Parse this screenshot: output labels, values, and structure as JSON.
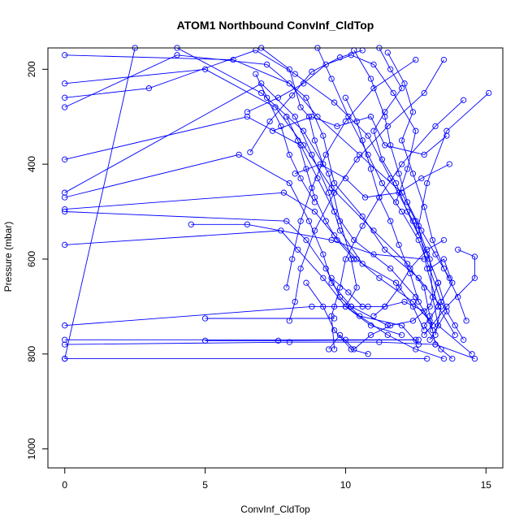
{
  "chart_data": {
    "type": "line",
    "title": "ATOM1 Northbound ConvInf_CldTop",
    "xlabel": "ConvInf_CldTop",
    "ylabel": "Pressure (mbar)",
    "xlim": [
      -0.6,
      15.6
    ],
    "ylim": [
      1040,
      155
    ],
    "y_reversed": true,
    "x_ticks": [
      0,
      5,
      10,
      15
    ],
    "y_ticks": [
      200,
      400,
      600,
      800,
      1000
    ],
    "grid": false,
    "legend": "none",
    "color": "#0000ff",
    "series": [
      {
        "points": [
          [
            0.0,
            810
          ],
          [
            2.5,
            155
          ],
          [
            4.0,
            155
          ],
          [
            7.0,
            250
          ],
          [
            8.5,
            330
          ],
          [
            9.4,
            420
          ],
          [
            9.8,
            520
          ],
          [
            10.2,
            600
          ],
          [
            10.4,
            660
          ],
          [
            10.0,
            700
          ],
          [
            11.5,
            760
          ],
          [
            12.5,
            790
          ],
          [
            13.5,
            810
          ]
        ]
      },
      {
        "points": [
          [
            0.0,
            170
          ],
          [
            6.0,
            180
          ],
          [
            8.0,
            230
          ],
          [
            9.0,
            300
          ],
          [
            10.5,
            380
          ],
          [
            12.0,
            460
          ],
          [
            12.5,
            520
          ],
          [
            13.0,
            600
          ],
          [
            13.1,
            680
          ],
          [
            13.3,
            740
          ],
          [
            14.5,
            800
          ]
        ]
      },
      {
        "points": [
          [
            0.0,
            230
          ],
          [
            5.0,
            200
          ],
          [
            7.5,
            280
          ],
          [
            8.5,
            360
          ],
          [
            9.5,
            450
          ],
          [
            11.0,
            540
          ],
          [
            12.2,
            610
          ],
          [
            12.8,
            660
          ],
          [
            13.0,
            720
          ],
          [
            13.2,
            780
          ],
          [
            14.6,
            810
          ]
        ]
      },
      {
        "points": [
          [
            0.0,
            260
          ],
          [
            3.0,
            240
          ],
          [
            6.8,
            160
          ],
          [
            8.2,
            210
          ],
          [
            9.6,
            270
          ],
          [
            10.8,
            340
          ],
          [
            11.6,
            430
          ],
          [
            12.4,
            520
          ],
          [
            12.9,
            590
          ],
          [
            13.3,
            650
          ],
          [
            13.6,
            710
          ],
          [
            13.0,
            770
          ]
        ]
      },
      {
        "points": [
          [
            0.0,
            280
          ],
          [
            4.0,
            170
          ],
          [
            7.2,
            190
          ],
          [
            8.6,
            260
          ],
          [
            9.2,
            340
          ],
          [
            9.6,
            440
          ],
          [
            10.6,
            510
          ],
          [
            11.4,
            580
          ],
          [
            12.6,
            640
          ],
          [
            13.4,
            700
          ],
          [
            13.2,
            760
          ]
        ]
      },
      {
        "points": [
          [
            0.0,
            390
          ],
          [
            6.5,
            300
          ],
          [
            8.4,
            360
          ],
          [
            9.0,
            430
          ],
          [
            9.6,
            500
          ],
          [
            10.3,
            560
          ],
          [
            11.6,
            620
          ],
          [
            12.5,
            680
          ],
          [
            13.1,
            740
          ]
        ]
      },
      {
        "points": [
          [
            0.0,
            460
          ],
          [
            7.0,
            230
          ],
          [
            8.2,
            300
          ],
          [
            8.8,
            380
          ],
          [
            9.4,
            460
          ],
          [
            9.8,
            540
          ],
          [
            10.6,
            610
          ],
          [
            11.8,
            650
          ],
          [
            12.4,
            700
          ],
          [
            12.8,
            750
          ]
        ]
      },
      {
        "points": [
          [
            0.0,
            470
          ],
          [
            6.2,
            380
          ],
          [
            8.0,
            440
          ],
          [
            8.7,
            520
          ],
          [
            9.2,
            590
          ],
          [
            9.5,
            650
          ],
          [
            10.2,
            700
          ],
          [
            11.5,
            740
          ]
        ]
      },
      {
        "points": [
          [
            0.0,
            495
          ],
          [
            7.8,
            460
          ],
          [
            8.9,
            500
          ],
          [
            9.6,
            550
          ],
          [
            10.4,
            600
          ],
          [
            11.2,
            640
          ],
          [
            12.4,
            690
          ],
          [
            13.0,
            730
          ]
        ]
      },
      {
        "points": [
          [
            0.0,
            500
          ],
          [
            7.9,
            520
          ],
          [
            8.6,
            560
          ],
          [
            9.3,
            620
          ],
          [
            9.8,
            680
          ],
          [
            10.5,
            720
          ],
          [
            12.0,
            740
          ],
          [
            12.6,
            780
          ]
        ]
      },
      {
        "points": [
          [
            0.0,
            570
          ],
          [
            7.7,
            540
          ],
          [
            8.3,
            580
          ],
          [
            9.2,
            640
          ],
          [
            10.0,
            700
          ],
          [
            10.9,
            740
          ],
          [
            12.0,
            760
          ]
        ]
      },
      {
        "points": [
          [
            0.0,
            740
          ],
          [
            8.8,
            700
          ],
          [
            9.6,
            700
          ],
          [
            10.2,
            700
          ],
          [
            10.8,
            700
          ]
        ]
      },
      {
        "points": [
          [
            0.0,
            770
          ],
          [
            10.0,
            770
          ],
          [
            12.6,
            770
          ]
        ]
      },
      {
        "points": [
          [
            0.0,
            780
          ],
          [
            8.0,
            775
          ],
          [
            11.2,
            775
          ],
          [
            13.2,
            780
          ]
        ]
      },
      {
        "points": [
          [
            0.0,
            810
          ],
          [
            12.9,
            810
          ]
        ]
      },
      {
        "points": [
          [
            5.0,
            725
          ],
          [
            9.6,
            725
          ]
        ]
      },
      {
        "points": [
          [
            5.0,
            772
          ],
          [
            7.6,
            772
          ],
          [
            12.5,
            770
          ]
        ]
      },
      {
        "points": [
          [
            4.5,
            527
          ],
          [
            6.5,
            527
          ],
          [
            9.5,
            560
          ],
          [
            11.0,
            590
          ],
          [
            12.8,
            600
          ]
        ]
      },
      {
        "points": [
          [
            7.0,
            155
          ],
          [
            8.0,
            200
          ],
          [
            8.4,
            280
          ],
          [
            8.7,
            300
          ],
          [
            8.9,
            350
          ],
          [
            9.2,
            400
          ]
        ]
      },
      {
        "points": [
          [
            9.0,
            155
          ],
          [
            9.5,
            220
          ],
          [
            10.1,
            300
          ],
          [
            10.8,
            380
          ],
          [
            11.3,
            440
          ],
          [
            12.0,
            500
          ],
          [
            12.6,
            560
          ],
          [
            13.0,
            620
          ],
          [
            13.4,
            690
          ],
          [
            13.9,
            740
          ],
          [
            14.2,
            770
          ]
        ]
      },
      {
        "points": [
          [
            10.3,
            160
          ],
          [
            10.9,
            220
          ],
          [
            11.4,
            300
          ],
          [
            11.6,
            360
          ],
          [
            11.9,
            420
          ],
          [
            12.2,
            480
          ],
          [
            12.7,
            540
          ],
          [
            13.2,
            590
          ],
          [
            13.7,
            640
          ]
        ]
      },
      {
        "points": [
          [
            11.5,
            165
          ],
          [
            12.1,
            230
          ],
          [
            12.4,
            290
          ],
          [
            12.0,
            350
          ],
          [
            12.4,
            420
          ],
          [
            12.8,
            490
          ],
          [
            13.1,
            560
          ],
          [
            13.5,
            620
          ],
          [
            14.0,
            680
          ],
          [
            14.3,
            730
          ]
        ]
      },
      {
        "points": [
          [
            15.1,
            250
          ],
          [
            13.6,
            330
          ],
          [
            12.9,
            440
          ],
          [
            12.6,
            530
          ],
          [
            12.9,
            620
          ],
          [
            13.3,
            700
          ],
          [
            13.9,
            760
          ]
        ]
      },
      {
        "points": [
          [
            14.2,
            265
          ],
          [
            13.2,
            320
          ],
          [
            12.0,
            400
          ],
          [
            11.2,
            470
          ],
          [
            10.6,
            530
          ],
          [
            10.0,
            600
          ],
          [
            9.8,
            660
          ],
          [
            9.5,
            720
          ],
          [
            9.6,
            790
          ]
        ]
      },
      {
        "points": [
          [
            12.5,
            180
          ],
          [
            11.0,
            240
          ],
          [
            10.0,
            310
          ],
          [
            9.3,
            380
          ],
          [
            8.8,
            450
          ],
          [
            8.4,
            520
          ],
          [
            8.1,
            600
          ],
          [
            7.9,
            660
          ]
        ]
      },
      {
        "points": [
          [
            13.5,
            180
          ],
          [
            12.8,
            250
          ],
          [
            11.5,
            320
          ],
          [
            10.4,
            390
          ],
          [
            9.6,
            460
          ],
          [
            8.9,
            540
          ],
          [
            8.4,
            620
          ],
          [
            8.2,
            690
          ],
          [
            8.0,
            730
          ]
        ]
      },
      {
        "points": [
          [
            6.5,
            290
          ],
          [
            7.6,
            260
          ],
          [
            8.5,
            230
          ],
          [
            9.3,
            190
          ],
          [
            10.2,
            170
          ],
          [
            11.0,
            190
          ],
          [
            11.7,
            250
          ],
          [
            12.5,
            330
          ],
          [
            12.2,
            410
          ],
          [
            11.8,
            480
          ]
        ]
      },
      {
        "points": [
          [
            7.4,
            330
          ],
          [
            8.8,
            300
          ],
          [
            9.7,
            320
          ],
          [
            10.9,
            300
          ],
          [
            11.4,
            360
          ],
          [
            12.8,
            380
          ],
          [
            13.6,
            340
          ]
        ]
      },
      {
        "points": [
          [
            8.2,
            420
          ],
          [
            9.1,
            400
          ],
          [
            10.0,
            430
          ],
          [
            10.7,
            470
          ],
          [
            11.9,
            460
          ],
          [
            12.7,
            430
          ],
          [
            13.7,
            400
          ]
        ]
      },
      {
        "points": [
          [
            6.6,
            375
          ],
          [
            7.3,
            310
          ],
          [
            8.1,
            255
          ],
          [
            8.8,
            205
          ],
          [
            9.8,
            175
          ],
          [
            10.6,
            160
          ]
        ]
      },
      {
        "points": [
          [
            14.0,
            580
          ],
          [
            14.6,
            595
          ],
          [
            14.6,
            640
          ],
          [
            13.6,
            700
          ],
          [
            12.8,
            760
          ]
        ]
      },
      {
        "points": [
          [
            13.0,
            620
          ],
          [
            13.5,
            600
          ],
          [
            13.8,
            650
          ],
          [
            13.3,
            700
          ],
          [
            12.8,
            740
          ],
          [
            13.4,
            790
          ],
          [
            13.8,
            810
          ]
        ]
      },
      {
        "points": [
          [
            9.4,
            790
          ],
          [
            9.8,
            760
          ],
          [
            10.3,
            790
          ],
          [
            10.9,
            760
          ],
          [
            11.6,
            740
          ],
          [
            12.4,
            730
          ],
          [
            13.0,
            700
          ],
          [
            13.3,
            650
          ]
        ]
      },
      {
        "points": [
          [
            8.6,
            650
          ],
          [
            9.2,
            700
          ],
          [
            9.6,
            750
          ],
          [
            10.2,
            790
          ],
          [
            10.8,
            800
          ]
        ]
      },
      {
        "points": [
          [
            11.0,
            720
          ],
          [
            11.4,
            700
          ],
          [
            11.9,
            660
          ],
          [
            12.3,
            620
          ],
          [
            12.9,
            580
          ],
          [
            13.5,
            560
          ]
        ]
      },
      {
        "points": [
          [
            7.9,
            300
          ],
          [
            8.3,
            350
          ],
          [
            8.6,
            410
          ],
          [
            8.9,
            470
          ],
          [
            9.3,
            520
          ],
          [
            9.7,
            560
          ],
          [
            10.3,
            600
          ]
        ]
      },
      {
        "points": [
          [
            6.8,
            210
          ],
          [
            7.2,
            260
          ],
          [
            7.7,
            320
          ],
          [
            8.0,
            380
          ],
          [
            8.4,
            430
          ],
          [
            8.9,
            480
          ]
        ]
      },
      {
        "points": [
          [
            11.2,
            155
          ],
          [
            11.6,
            200
          ],
          [
            12.0,
            240
          ],
          [
            11.4,
            290
          ],
          [
            11.0,
            330
          ],
          [
            11.3,
            390
          ],
          [
            11.8,
            440
          ],
          [
            12.2,
            500
          ],
          [
            12.6,
            550
          ]
        ]
      },
      {
        "points": [
          [
            10.0,
            260
          ],
          [
            10.4,
            310
          ],
          [
            10.6,
            350
          ],
          [
            10.9,
            410
          ],
          [
            11.2,
            470
          ],
          [
            11.6,
            520
          ],
          [
            11.9,
            570
          ],
          [
            12.3,
            630
          ],
          [
            12.6,
            690
          ]
        ]
      },
      {
        "points": [
          [
            9.5,
            640
          ],
          [
            10.1,
            670
          ],
          [
            10.6,
            700
          ],
          [
            11.4,
            700
          ],
          [
            12.1,
            690
          ],
          [
            12.8,
            710
          ],
          [
            13.1,
            750
          ]
        ]
      }
    ]
  }
}
